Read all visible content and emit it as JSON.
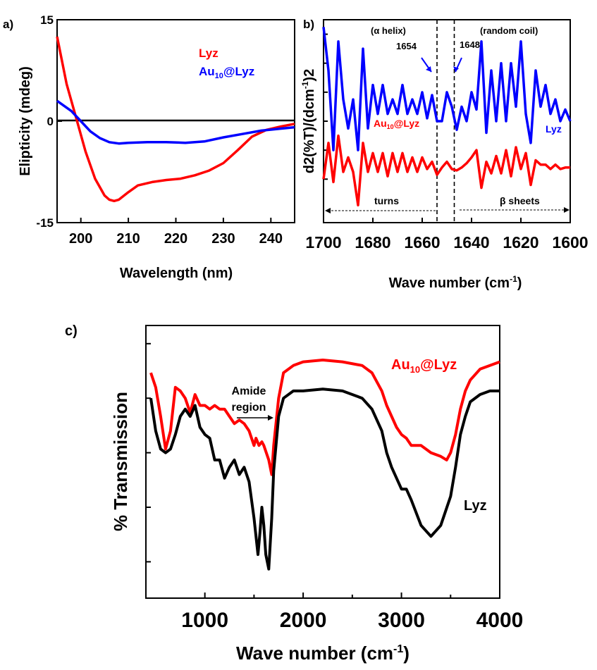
{
  "chart_data": [
    {
      "panel_label": "a)",
      "type": "line",
      "xlabel": "Wavelength (nm)",
      "ylabel": "Elipticity (mdeg)",
      "xlim": [
        195,
        245
      ],
      "ylim": [
        -15,
        15
      ],
      "xticks": [
        200,
        210,
        220,
        230,
        240
      ],
      "yticks": [
        -15,
        0,
        15
      ],
      "legend": {
        "placement": "top-right"
      },
      "zero_line": true,
      "series": [
        {
          "name": "Lyz",
          "color": "#ff0000",
          "x": [
            195,
            197,
            199,
            201,
            203,
            205,
            206,
            207,
            208,
            210,
            212,
            215,
            218,
            221,
            224,
            227,
            230,
            233,
            236,
            239,
            242,
            245
          ],
          "y": [
            12.5,
            5.5,
            0.5,
            -4.5,
            -8.5,
            -11.0,
            -11.6,
            -11.8,
            -11.6,
            -10.5,
            -9.5,
            -9.0,
            -8.7,
            -8.5,
            -8.0,
            -7.3,
            -6.2,
            -4.3,
            -2.3,
            -1.3,
            -0.8,
            -0.4
          ]
        },
        {
          "name": "Au10@Lyz",
          "color": "#0000ff",
          "x": [
            195,
            198,
            200,
            202,
            204,
            206,
            208,
            210,
            214,
            218,
            222,
            226,
            230,
            234,
            238,
            242,
            245
          ],
          "y": [
            3.0,
            1.5,
            0.0,
            -1.5,
            -2.5,
            -3.1,
            -3.3,
            -3.2,
            -3.1,
            -3.1,
            -3.2,
            -3.0,
            -2.4,
            -1.9,
            -1.4,
            -1.1,
            -0.9
          ]
        }
      ]
    },
    {
      "panel_label": "b)",
      "type": "line",
      "xlabel_main": "Wave number (cm",
      "xlabel_sup": "-1",
      "xlabel_close": ")",
      "ylabel": "d2(%T)/(dcm-1)2",
      "xlim": [
        1700,
        1600
      ],
      "xticks": [
        1700,
        1680,
        1660,
        1640,
        1620,
        1600
      ],
      "annotations": {
        "alpha_helix": "(α helix)",
        "random_coil": "(random coil)",
        "peak_1654": "1654",
        "peak_1648": "1648",
        "turns": "turns",
        "beta_sheets": "β sheets",
        "divider_positions": [
          1654,
          1647
        ]
      },
      "series": [
        {
          "name": "Lyz",
          "color": "#0000ff",
          "x": [
            1700,
            1698,
            1696,
            1694,
            1692,
            1690,
            1688,
            1686,
            1684,
            1682,
            1680,
            1678,
            1676,
            1674,
            1672,
            1670,
            1668,
            1666,
            1664,
            1662,
            1660,
            1658,
            1656,
            1654,
            1652,
            1650,
            1648,
            1646,
            1644,
            1642,
            1640,
            1638,
            1636,
            1634,
            1632,
            1630,
            1628,
            1626,
            1624,
            1622,
            1620,
            1618,
            1616,
            1614,
            1612,
            1610,
            1608,
            1606,
            1604,
            1602,
            1600
          ],
          "y": [
            9.5,
            6.5,
            1.0,
            8.5,
            4.5,
            2.5,
            4.5,
            1.0,
            8.0,
            2.5,
            5.5,
            3.5,
            5.5,
            3.5,
            4.5,
            3.5,
            5.5,
            3.5,
            4.5,
            3.5,
            5.0,
            3.2,
            4.8,
            3.0,
            3.0,
            5.0,
            4.0,
            2.4,
            4.0,
            3.0,
            5.0,
            3.8,
            8.5,
            2.2,
            6.5,
            3.0,
            7.0,
            3.0,
            7.0,
            4.0,
            8.5,
            3.5,
            1.5,
            6.5,
            4.0,
            5.5,
            3.5,
            4.5,
            3.0,
            3.8,
            3.0
          ]
        },
        {
          "name": "Au10@Lyz",
          "color": "#ff0000",
          "x": [
            1700,
            1698,
            1696,
            1694,
            1692,
            1690,
            1688,
            1686,
            1684,
            1682,
            1680,
            1678,
            1676,
            1674,
            1672,
            1670,
            1668,
            1666,
            1664,
            1662,
            1660,
            1658,
            1656,
            1654,
            1652,
            1650,
            1648,
            1646,
            1644,
            1642,
            1640,
            1638,
            1636,
            1634,
            1632,
            1630,
            1628,
            1626,
            1624,
            1622,
            1620,
            1618,
            1616,
            1614,
            1612,
            1610,
            1608,
            1606,
            1604,
            1602,
            1600
          ],
          "y": [
            -1.0,
            1.5,
            -1.2,
            2.0,
            -0.5,
            0.5,
            -0.5,
            -2.8,
            1.5,
            -0.5,
            0.8,
            -0.5,
            0.8,
            -0.8,
            0.8,
            -0.5,
            0.8,
            -0.5,
            0.5,
            -0.5,
            0.5,
            -0.3,
            0.2,
            -0.7,
            -0.2,
            0.2,
            -0.3,
            -0.4,
            -0.2,
            0.1,
            0.5,
            1.0,
            -1.6,
            0.2,
            -0.6,
            0.6,
            -0.6,
            1.0,
            -0.8,
            1.2,
            -0.3,
            0.8,
            -1.4,
            0.3,
            0.0,
            0.0,
            -0.3,
            0.0,
            -0.3,
            -0.2,
            -0.2
          ]
        }
      ]
    },
    {
      "panel_label": "c)",
      "type": "line",
      "xlabel_main": "Wave number (cm",
      "xlabel_sup": "-1",
      "xlabel_close": ")",
      "ylabel": "% Transmission",
      "xlim": [
        400,
        4000
      ],
      "xticks": [
        1000,
        2000,
        3000,
        4000
      ],
      "annotations": {
        "amide_line1": "Amide",
        "amide_line2": "region"
      },
      "series": [
        {
          "name": "Au10@Lyz",
          "color": "#ff0000",
          "x": [
            450,
            500,
            550,
            600,
            650,
            700,
            750,
            800,
            850,
            900,
            950,
            1000,
            1050,
            1100,
            1150,
            1200,
            1250,
            1300,
            1350,
            1400,
            1450,
            1500,
            1520,
            1550,
            1580,
            1600,
            1650,
            1680,
            1700,
            1750,
            1800,
            1900,
            2000,
            2200,
            2400,
            2600,
            2700,
            2800,
            2850,
            2900,
            2950,
            3000,
            3050,
            3100,
            3200,
            3300,
            3400,
            3460,
            3500,
            3550,
            3600,
            3650,
            3700,
            3800,
            3900,
            4000
          ],
          "y": [
            82,
            78,
            70,
            61,
            66,
            78,
            77,
            75,
            71,
            76,
            73,
            73,
            72,
            73,
            72,
            72,
            70,
            68,
            69,
            68,
            66,
            62,
            64,
            62,
            63,
            62,
            58,
            54,
            62,
            75,
            82,
            84,
            85,
            85.5,
            85,
            84,
            82,
            77,
            73,
            70,
            67,
            65,
            64,
            62,
            62,
            60,
            59,
            58,
            60,
            65,
            72,
            77,
            80,
            83,
            84,
            85
          ]
        },
        {
          "name": "Lyz",
          "color": "#000000",
          "x": [
            450,
            500,
            550,
            600,
            650,
            700,
            750,
            800,
            850,
            900,
            950,
            1000,
            1050,
            1100,
            1150,
            1200,
            1250,
            1300,
            1350,
            1400,
            1450,
            1500,
            1540,
            1560,
            1580,
            1600,
            1620,
            1650,
            1680,
            1700,
            1750,
            1800,
            1900,
            2000,
            2200,
            2400,
            2600,
            2700,
            2800,
            2850,
            2900,
            2950,
            3000,
            3050,
            3100,
            3200,
            3300,
            3400,
            3500,
            3550,
            3600,
            3650,
            3700,
            3800,
            3900,
            4000
          ],
          "y": [
            75,
            66,
            61,
            60,
            61,
            65,
            70,
            72,
            70,
            73,
            67,
            65,
            64,
            58,
            58,
            53,
            56,
            58,
            54,
            56,
            52,
            42,
            32,
            38,
            45,
            40,
            32,
            28,
            42,
            55,
            70,
            75,
            77,
            77,
            77.5,
            77,
            75,
            72,
            66,
            60,
            56,
            53,
            50,
            50,
            47,
            40,
            37,
            40,
            48,
            56,
            65,
            70,
            74,
            76,
            77,
            77
          ]
        }
      ]
    }
  ]
}
